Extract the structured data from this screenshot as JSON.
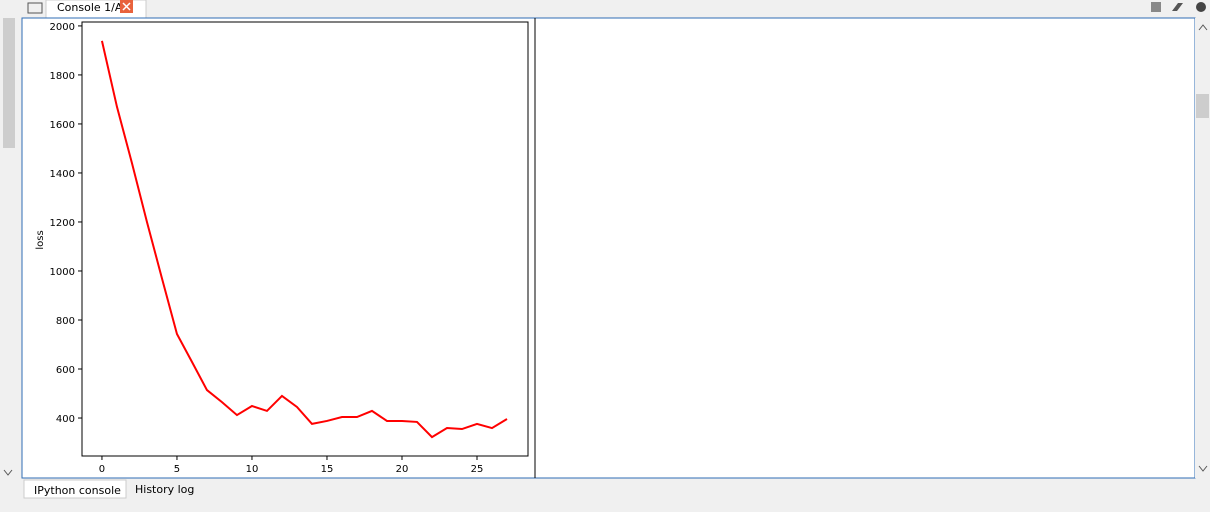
{
  "tab": {
    "title": "Console 1/A"
  },
  "bottom_tabs": [
    "IPython console",
    "History log"
  ],
  "chart_data": {
    "type": "line",
    "ylabel": "loss",
    "x": [
      0,
      1,
      2,
      3,
      4,
      5,
      6,
      7,
      8,
      9,
      10,
      11,
      12,
      13,
      14,
      15,
      16,
      17,
      18,
      19,
      20,
      21,
      22,
      23,
      24,
      25,
      26,
      27
    ],
    "series": [
      {
        "name": "loss",
        "color": "#ff0000",
        "values": [
          1939,
          1670,
          1440,
          1200,
          970,
          743,
          629,
          514,
          465,
          412,
          449,
          429,
          490,
          445,
          376,
          388,
          404,
          404,
          429,
          388,
          388,
          384,
          322,
          359,
          355,
          376,
          359,
          396
        ]
      }
    ],
    "xlim": [
      -1.33,
      28.4
    ],
    "ylim": [
      245,
      2016
    ],
    "xticks": [
      0,
      5,
      10,
      15,
      20,
      25
    ],
    "yticks": [
      400,
      600,
      800,
      1000,
      1200,
      1400,
      1600,
      1800,
      2000
    ],
    "grid": false
  }
}
